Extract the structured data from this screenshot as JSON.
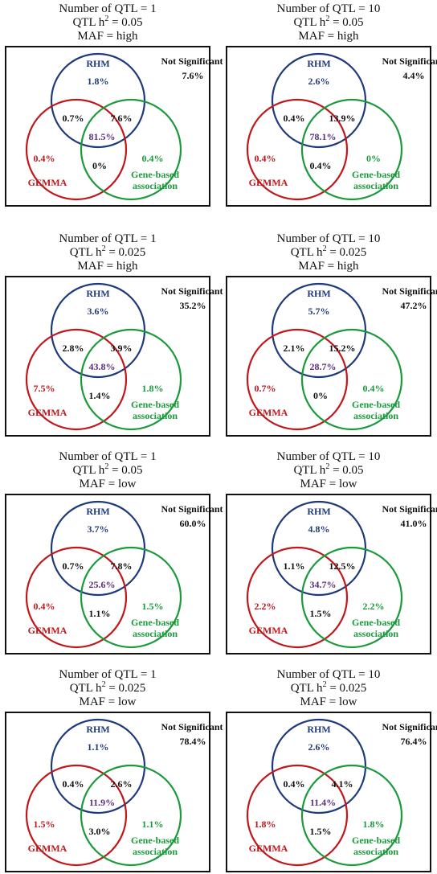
{
  "colors": {
    "rhm": "#1f3a7a",
    "gemma": "#c0171b",
    "gene": "#1a9a3b",
    "center": "#5b2f7f",
    "black": "#111111"
  },
  "labels": {
    "rhm": "RHM",
    "gemma": "GEMMA",
    "gene_line1": "Gene-based",
    "gene_line2": "association",
    "ns": "Not Significant"
  },
  "panels": [
    {
      "header": {
        "l1": "Number of QTL = 1",
        "l2a": "QTL h",
        "sup": "2",
        "l2b": " = 0.05",
        "l3": "MAF = high"
      },
      "values": {
        "rhm": "1.8%",
        "ns": "7.6%",
        "rg": "0.7%",
        "rb": "7.6%",
        "center": "81.5%",
        "gemma": "0.4%",
        "gb": "0%",
        "gene": "0.4%"
      }
    },
    {
      "header": {
        "l1": "Number of QTL = 10",
        "l2a": "QTL h",
        "sup": "2",
        "l2b": " = 0.05",
        "l3": "MAF = high"
      },
      "values": {
        "rhm": "2.6%",
        "ns": "4.4%",
        "rg": "0.4%",
        "rb": "13.9%",
        "center": "78.1%",
        "gemma": "0.4%",
        "gb": "0.4%",
        "gene": "0%"
      }
    },
    {
      "header": {
        "l1": "Number of QTL = 1",
        "l2a": "QTL h",
        "sup": "2",
        "l2b": " = 0.025",
        "l3": "MAF = high"
      },
      "values": {
        "rhm": "3.6%",
        "ns": "35.2%",
        "rg": "2.8%",
        "rb": "3.9%",
        "center": "43.8%",
        "gemma": "7.5%",
        "gb": "1.4%",
        "gene": "1.8%"
      }
    },
    {
      "header": {
        "l1": "Number of QTL = 10",
        "l2a": "QTL h",
        "sup": "2",
        "l2b": " = 0.025",
        "l3": "MAF = high"
      },
      "values": {
        "rhm": "5.7%",
        "ns": "47.2%",
        "rg": "2.1%",
        "rb": "15.2%",
        "center": "28.7%",
        "gemma": "0.7%",
        "gb": "0%",
        "gene": "0.4%"
      }
    },
    {
      "header": {
        "l1": "Number of QTL = 1",
        "l2a": "QTL h",
        "sup": "2",
        "l2b": " = 0.05",
        "l3": "MAF = low"
      },
      "values": {
        "rhm": "3.7%",
        "ns": "60.0%",
        "rg": "0.7%",
        "rb": "7.8%",
        "center": "25.6%",
        "gemma": "0.4%",
        "gb": "1.1%",
        "gene": "1.5%"
      }
    },
    {
      "header": {
        "l1": "Number of QTL = 10",
        "l2a": "QTL h",
        "sup": "2",
        "l2b": " = 0.05",
        "l3": "MAF = low"
      },
      "values": {
        "rhm": "4.8%",
        "ns": "41.0%",
        "rg": "1.1%",
        "rb": "12.5%",
        "center": "34.7%",
        "gemma": "2.2%",
        "gb": "1.5%",
        "gene": "2.2%"
      }
    },
    {
      "header": {
        "l1": "Number of QTL = 1",
        "l2a": "QTL h",
        "sup": "2",
        "l2b": " = 0.025",
        "l3": "MAF = low"
      },
      "values": {
        "rhm": "1.1%",
        "ns": "78.4%",
        "rg": "0.4%",
        "rb": "2.6%",
        "center": "11.9%",
        "gemma": "1.5%",
        "gb": "3.0%",
        "gene": "1.1%"
      }
    },
    {
      "header": {
        "l1": "Number of QTL = 10",
        "l2a": "QTL h",
        "sup": "2",
        "l2b": " = 0.025",
        "l3": "MAF = low"
      },
      "values": {
        "rhm": "2.6%",
        "ns": "76.4%",
        "rg": "0.4%",
        "rb": "4.1%",
        "center": "11.4%",
        "gemma": "1.8%",
        "gb": "1.5%",
        "gene": "1.8%"
      }
    }
  ]
}
